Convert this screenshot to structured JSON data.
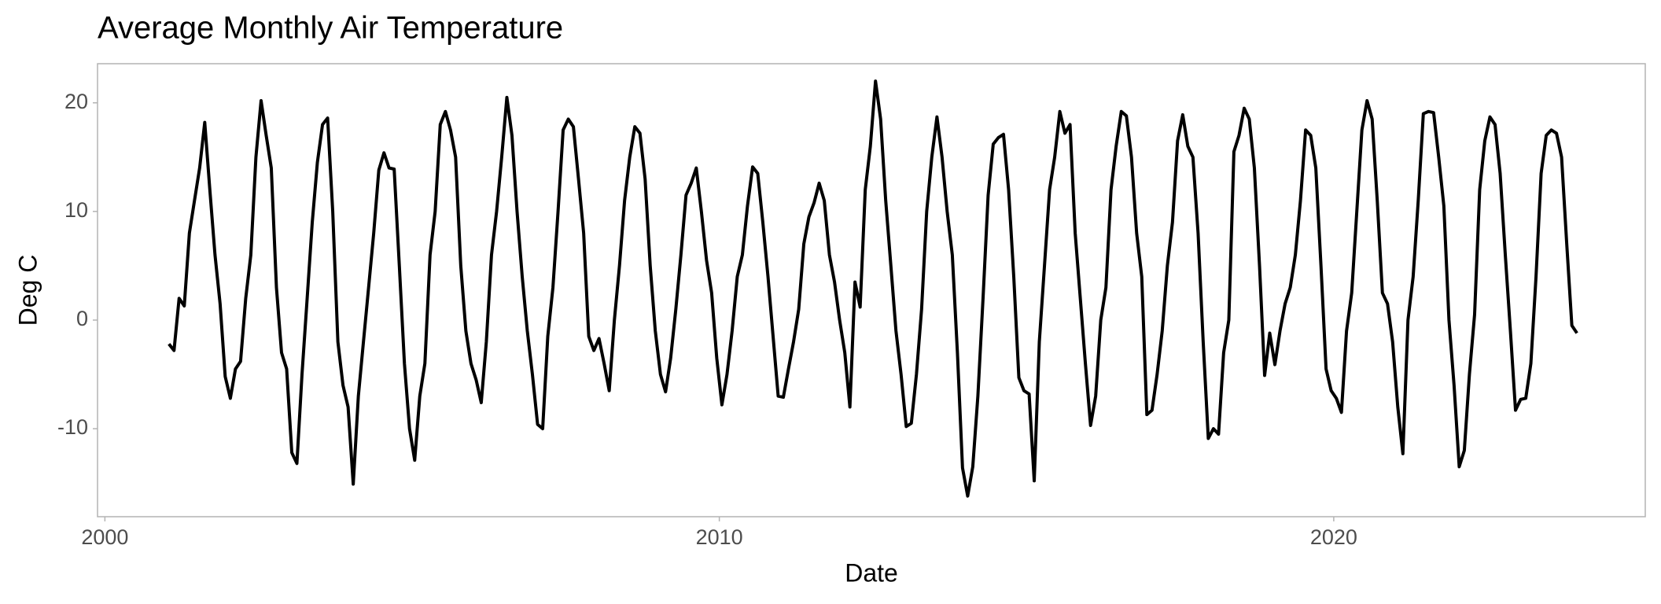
{
  "chart_data": {
    "type": "line",
    "title": "Average Monthly Air Temperature",
    "x_label": "Date",
    "y_label": "Deg C",
    "xlim": [
      1999.88,
      2025.07
    ],
    "ylim": [
      -18.1,
      23.6
    ],
    "xticks": [
      2000,
      2010,
      2020
    ],
    "yticks": [
      -10,
      0,
      10,
      20
    ],
    "grid": false,
    "series": [
      {
        "name": "Air temperature",
        "color": "#000000",
        "x": [
          2001.042,
          2001.125,
          2001.208,
          2001.292,
          2001.375,
          2001.458,
          2001.542,
          2001.625,
          2001.708,
          2001.792,
          2001.875,
          2001.958,
          2002.042,
          2002.125,
          2002.208,
          2002.292,
          2002.375,
          2002.458,
          2002.542,
          2002.625,
          2002.708,
          2002.792,
          2002.875,
          2002.958,
          2003.042,
          2003.125,
          2003.208,
          2003.292,
          2003.375,
          2003.458,
          2003.542,
          2003.625,
          2003.708,
          2003.792,
          2003.875,
          2003.958,
          2004.042,
          2004.125,
          2004.208,
          2004.292,
          2004.375,
          2004.458,
          2004.542,
          2004.625,
          2004.708,
          2004.792,
          2004.875,
          2004.958,
          2005.042,
          2005.125,
          2005.208,
          2005.292,
          2005.375,
          2005.458,
          2005.542,
          2005.625,
          2005.708,
          2005.792,
          2005.875,
          2005.958,
          2006.042,
          2006.125,
          2006.208,
          2006.292,
          2006.375,
          2006.458,
          2006.542,
          2006.625,
          2006.708,
          2006.792,
          2006.875,
          2006.958,
          2007.042,
          2007.125,
          2007.208,
          2007.292,
          2007.375,
          2007.458,
          2007.542,
          2007.625,
          2007.708,
          2007.792,
          2007.875,
          2007.958,
          2008.042,
          2008.125,
          2008.208,
          2008.292,
          2008.375,
          2008.458,
          2008.542,
          2008.625,
          2008.708,
          2008.792,
          2008.875,
          2008.958,
          2009.042,
          2009.125,
          2009.208,
          2009.292,
          2009.375,
          2009.458,
          2009.542,
          2009.625,
          2009.708,
          2009.792,
          2009.875,
          2009.958,
          2010.042,
          2010.125,
          2010.208,
          2010.292,
          2010.375,
          2010.458,
          2010.542,
          2010.625,
          2010.708,
          2010.792,
          2010.875,
          2010.958,
          2011.042,
          2011.125,
          2011.208,
          2011.292,
          2011.375,
          2011.458,
          2011.542,
          2011.625,
          2011.708,
          2011.792,
          2011.875,
          2011.958,
          2012.042,
          2012.125,
          2012.208,
          2012.292,
          2012.375,
          2012.458,
          2012.542,
          2012.625,
          2012.708,
          2012.792,
          2012.875,
          2012.958,
          2013.042,
          2013.125,
          2013.208,
          2013.292,
          2013.375,
          2013.458,
          2013.542,
          2013.625,
          2013.708,
          2013.792,
          2013.875,
          2013.958,
          2014.042,
          2014.125,
          2014.208,
          2014.292,
          2014.375,
          2014.458,
          2014.542,
          2014.625,
          2014.708,
          2014.792,
          2014.875,
          2014.958,
          2015.042,
          2015.125,
          2015.208,
          2015.292,
          2015.375,
          2015.458,
          2015.542,
          2015.625,
          2015.708,
          2015.792,
          2015.875,
          2015.958,
          2016.042,
          2016.125,
          2016.208,
          2016.292,
          2016.375,
          2016.458,
          2016.542,
          2016.625,
          2016.708,
          2016.792,
          2016.875,
          2016.958,
          2017.042,
          2017.125,
          2017.208,
          2017.292,
          2017.375,
          2017.458,
          2017.542,
          2017.625,
          2017.708,
          2017.792,
          2017.875,
          2017.958,
          2018.042,
          2018.125,
          2018.208,
          2018.292,
          2018.375,
          2018.458,
          2018.542,
          2018.625,
          2018.708,
          2018.792,
          2018.875,
          2018.958,
          2019.042,
          2019.125,
          2019.208,
          2019.292,
          2019.375,
          2019.458,
          2019.542,
          2019.625,
          2019.708,
          2019.792,
          2019.875,
          2019.958,
          2020.042,
          2020.125,
          2020.208,
          2020.292,
          2020.375,
          2020.458,
          2020.542,
          2020.625,
          2020.708,
          2020.792,
          2020.875,
          2020.958,
          2021.042,
          2021.125,
          2021.208,
          2021.292,
          2021.375,
          2021.458,
          2021.542,
          2021.625,
          2021.708,
          2021.792,
          2021.875,
          2021.958,
          2022.042,
          2022.125,
          2022.208,
          2022.292,
          2022.375,
          2022.458,
          2022.542,
          2022.625,
          2022.708,
          2022.792,
          2022.875,
          2022.958,
          2023.042,
          2023.125,
          2023.208,
          2023.292,
          2023.375,
          2023.458,
          2023.542,
          2023.625,
          2023.708,
          2023.792,
          2023.875,
          2023.958
        ],
        "values": [
          -2.2,
          -2.8,
          2,
          1.3,
          8,
          11,
          14,
          18.2,
          12,
          6,
          1.5,
          -5.2,
          -7.2,
          -4.5,
          -3.8,
          2,
          6,
          15,
          20.2,
          17,
          14,
          3,
          -3,
          -4.5,
          -12.2,
          -13.2,
          -5,
          2,
          9,
          14.5,
          18,
          18.6,
          10,
          -2,
          -6,
          -8,
          -15.1,
          -7,
          -2,
          3,
          8,
          13.8,
          15.4,
          14,
          13.9,
          5,
          -4,
          -10,
          -12.9,
          -7,
          -4,
          6,
          10,
          18,
          19.2,
          17.5,
          15,
          5,
          -1,
          -4,
          -5.5,
          -7.6,
          -2,
          6,
          10,
          15,
          20.5,
          17,
          10,
          4,
          -1,
          -5,
          -9.6,
          -10,
          -1.5,
          3,
          10,
          17.5,
          18.5,
          17.8,
          13,
          8,
          -1.5,
          -2.8,
          -1.7,
          -4,
          -6.5,
          0,
          5,
          11,
          15,
          17.8,
          17.2,
          13,
          5,
          -1,
          -5,
          -6.6,
          -3.5,
          1,
          6,
          11.5,
          12.6,
          14,
          10,
          5.5,
          2.5,
          -3.5,
          -7.8,
          -5,
          -1,
          4,
          6,
          10.5,
          14.1,
          13.5,
          9,
          4,
          -1.5,
          -7,
          -7.1,
          -4.5,
          -2,
          1,
          7,
          9.5,
          10.8,
          12.6,
          11,
          6,
          3.5,
          0,
          -3,
          -8,
          3.5,
          1.2,
          12,
          16,
          22,
          18.5,
          11,
          5,
          -1,
          -5,
          -9.8,
          -9.5,
          -5,
          1,
          10,
          15,
          18.7,
          15,
          10,
          6,
          -3,
          -13.6,
          -16.2,
          -13.5,
          -7,
          2,
          11.5,
          16.2,
          16.8,
          17.1,
          12,
          4,
          -5.3,
          -6.5,
          -6.8,
          -14.8,
          -2,
          5,
          12,
          15,
          19.2,
          17.2,
          18,
          8,
          2,
          -4,
          -9.7,
          -7,
          0,
          3,
          12,
          16,
          19.2,
          18.8,
          15,
          8,
          4,
          -8.7,
          -8.3,
          -5,
          -1,
          5,
          9,
          16.5,
          18.9,
          16,
          15,
          8,
          -2,
          -10.9,
          -10,
          -10.5,
          -3,
          0,
          15.5,
          17,
          19.5,
          18.5,
          14,
          5,
          -5.1,
          -1.2,
          -4.1,
          -1,
          1.5,
          3,
          6,
          11,
          17.5,
          17,
          14,
          5,
          -4.5,
          -6.5,
          -7.2,
          -8.5,
          -1,
          2.5,
          10,
          17.5,
          20.2,
          18.5,
          11,
          2.5,
          1.5,
          -2,
          -8,
          -12.3,
          0,
          4,
          11,
          19,
          19.2,
          19.1,
          15,
          10.5,
          0,
          -6,
          -13.5,
          -12,
          -5,
          0.5,
          12,
          16.5,
          18.7,
          18,
          13.5,
          6,
          -1,
          -8.3,
          -7.3,
          -7.2,
          -4,
          4,
          13.5,
          17,
          17.5,
          17.2,
          15,
          7,
          -0.5,
          -1.2
        ]
      }
    ]
  }
}
